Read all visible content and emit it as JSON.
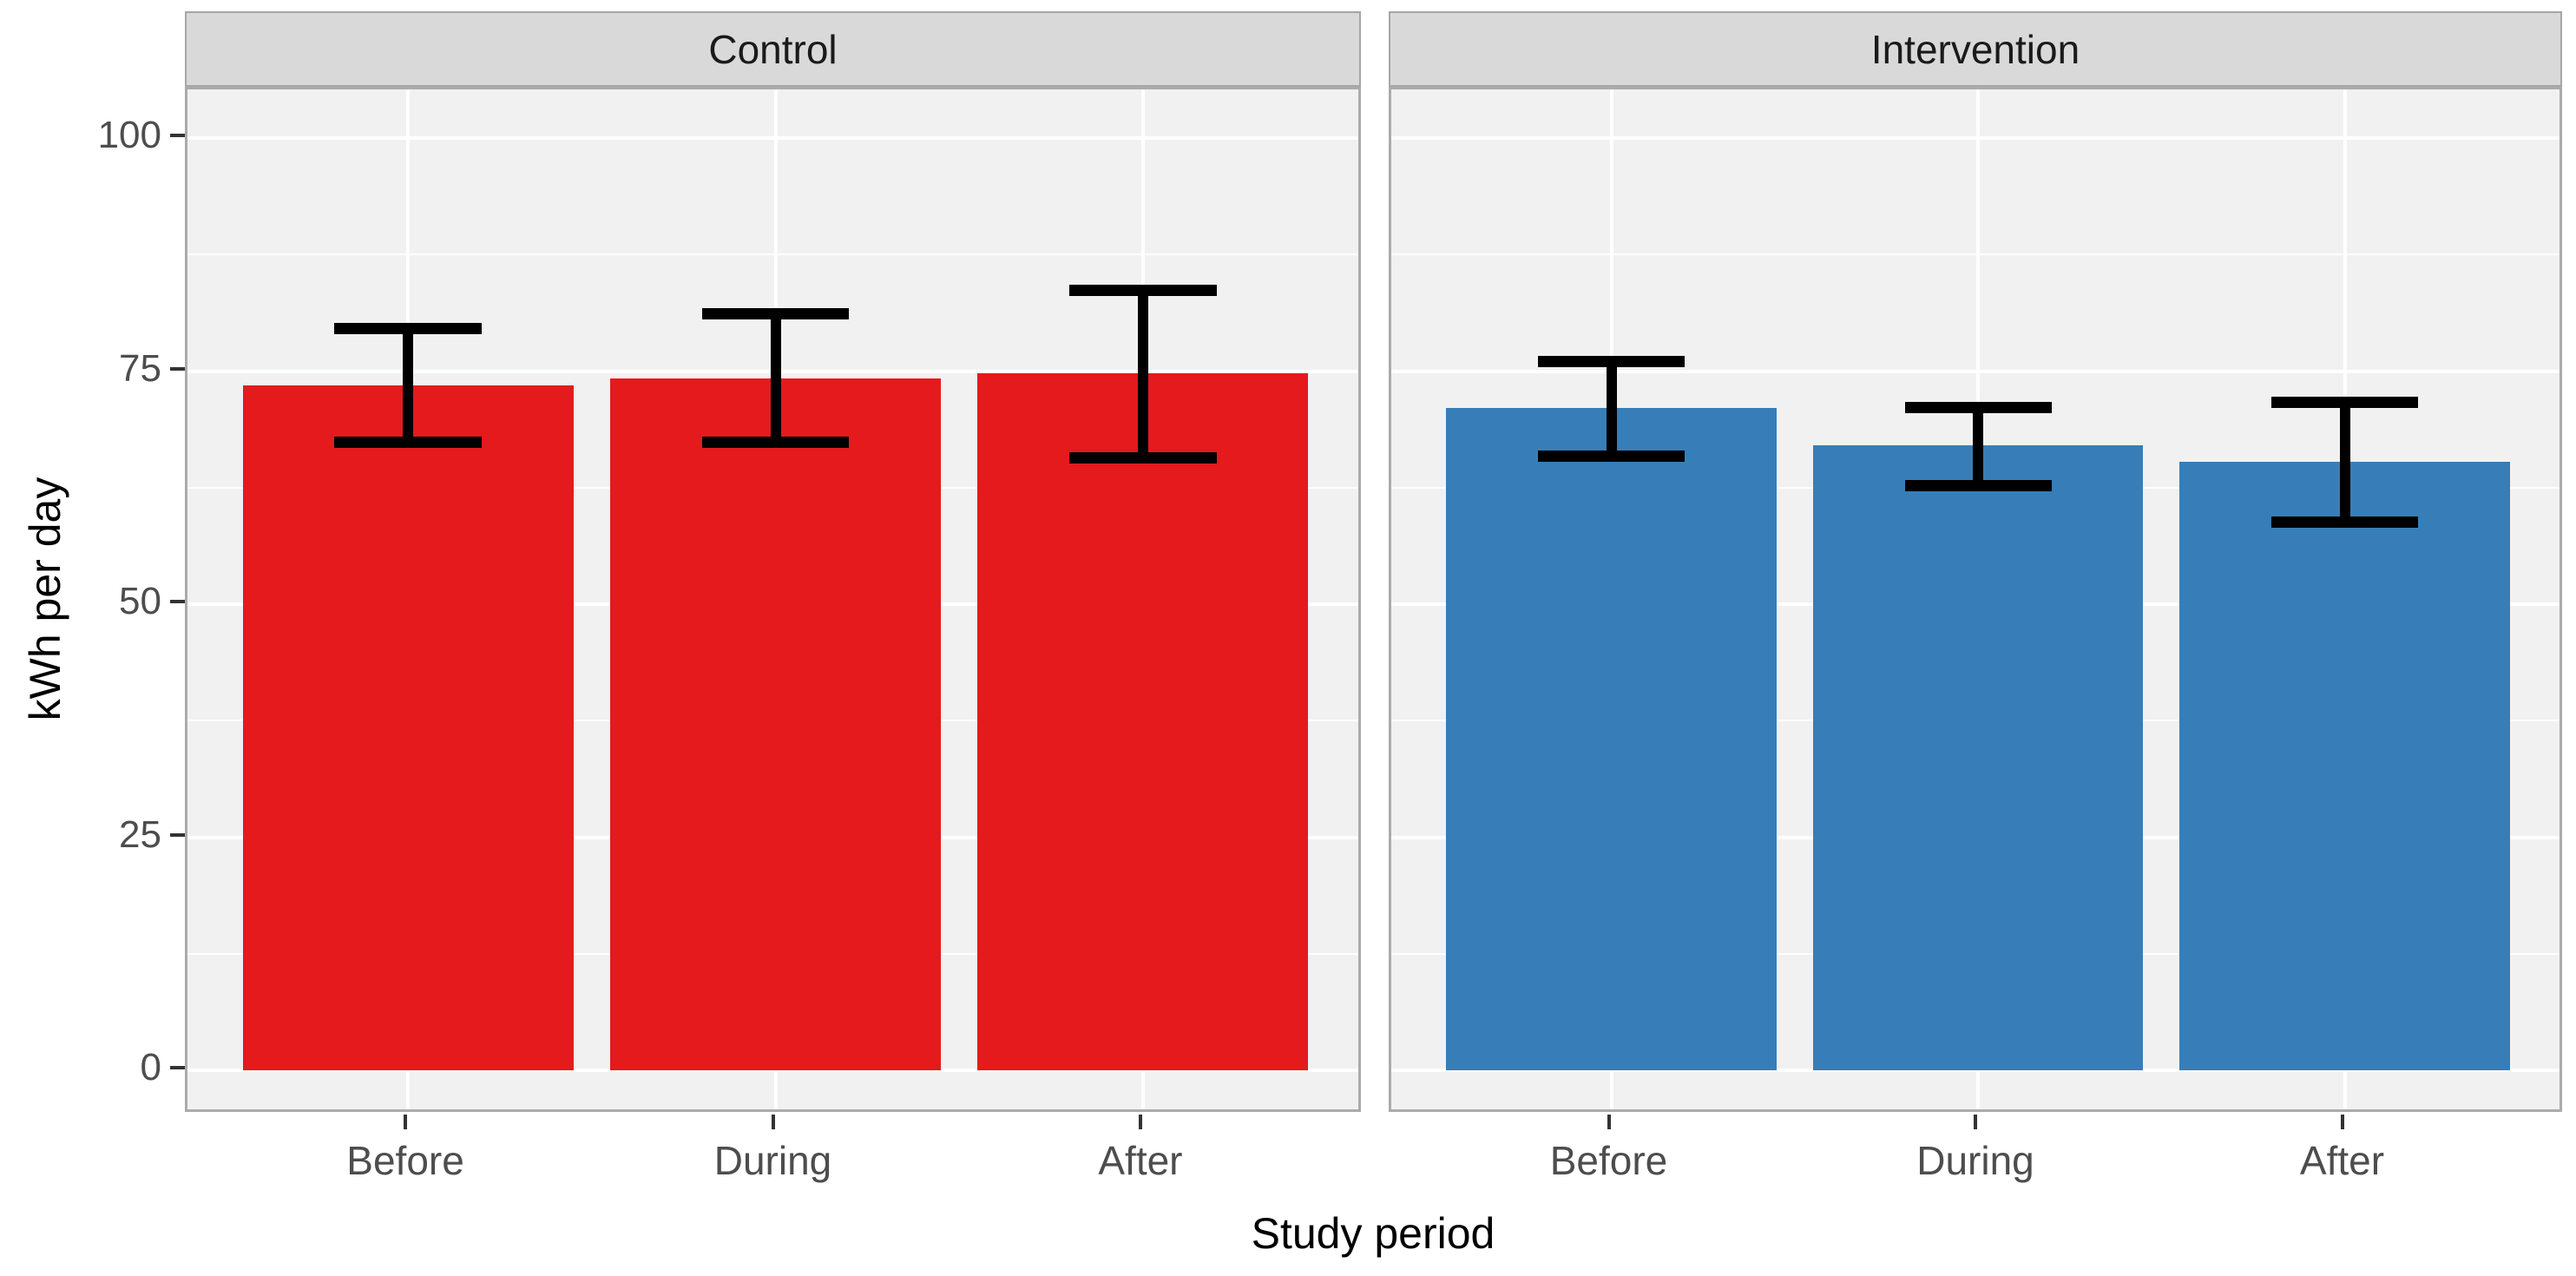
{
  "chart_data": {
    "type": "bar",
    "title": "",
    "xlabel": "Study period",
    "ylabel": "kWh per day",
    "categories": [
      "Before",
      "During",
      "After"
    ],
    "yticks": [
      0,
      25,
      50,
      75,
      100
    ],
    "ytick_labels": [
      "0",
      "25",
      "50",
      "75",
      "100"
    ],
    "ylim": [
      -5,
      105
    ],
    "grid": "white major and minor horizontal lines, white major vertical lines, on light gray panel",
    "legend": "none",
    "facets": [
      {
        "label": "Control",
        "color": "#E41A1C",
        "values": [
          73.5,
          74.2,
          74.8
        ],
        "error_low": [
          67.4,
          67.4,
          65.7
        ],
        "error_high": [
          79.6,
          81.2,
          83.7
        ]
      },
      {
        "label": "Intervention",
        "color": "#377EB8",
        "values": [
          71.0,
          67.0,
          65.3
        ],
        "error_low": [
          65.9,
          62.8,
          58.8
        ],
        "error_high": [
          76.1,
          71.1,
          71.7
        ]
      }
    ]
  },
  "colors": {
    "control_bar": "#E41A1C",
    "intervention_bar": "#377EB8",
    "panel_background": "#F1F1F1",
    "strip_background": "#D9D9D9",
    "strip_border": "#A6A6A6",
    "panel_border": "#ABABAB",
    "gridline": "#FFFFFF",
    "error_bar": "#000000",
    "tick_mark": "#333333",
    "tick_label": "#4D4D4D",
    "axis_title": "#000000"
  }
}
